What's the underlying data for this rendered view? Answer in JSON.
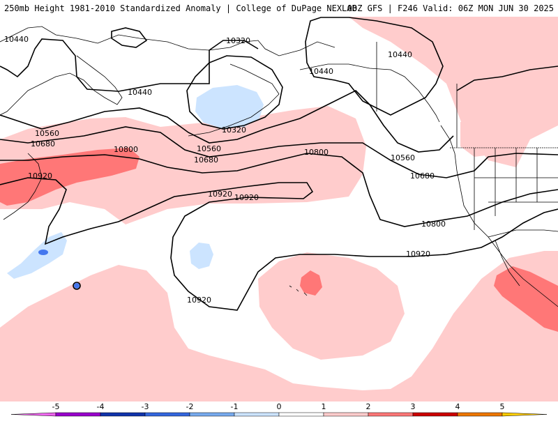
{
  "header": {
    "title_left": "250mb Height 1981-2010 Standardized Anomaly | College of DuPage NEXLAB",
    "title_right": "00Z GFS | F246 Valid: 06Z MON JUN 30 2025"
  },
  "contour_labels": [
    "10440",
    "10320",
    "10440",
    "10440",
    "10440",
    "10560",
    "10680",
    "10320",
    "10560",
    "10680",
    "10800",
    "10800",
    "10560",
    "10680",
    "10920",
    "10920",
    "10920",
    "10800",
    "10920",
    "10920"
  ],
  "legend": {
    "ticks": [
      "-5",
      "-4",
      "-3",
      "-2",
      "-1",
      "0",
      "1",
      "2",
      "3",
      "4",
      "5"
    ],
    "colors": {
      "below_min": "#ee66ee",
      "n5": "#9900cc",
      "n4": "#1133aa",
      "n3": "#3366dd",
      "n2": "#77aaee",
      "n1": "#cce4ff",
      "zero": "#ffffff",
      "p1": "#ffcccc",
      "p2": "#ff7777",
      "p3": "#cc0000",
      "p4": "#ee7700",
      "above_max": "#ffcc00"
    }
  },
  "colors": {
    "neg_light": "#cce4ff",
    "neg_med": "#4477ee",
    "pos_light": "#ffcccc",
    "pos_med": "#ff7777",
    "contour": "#000000",
    "coast": "#000000"
  }
}
